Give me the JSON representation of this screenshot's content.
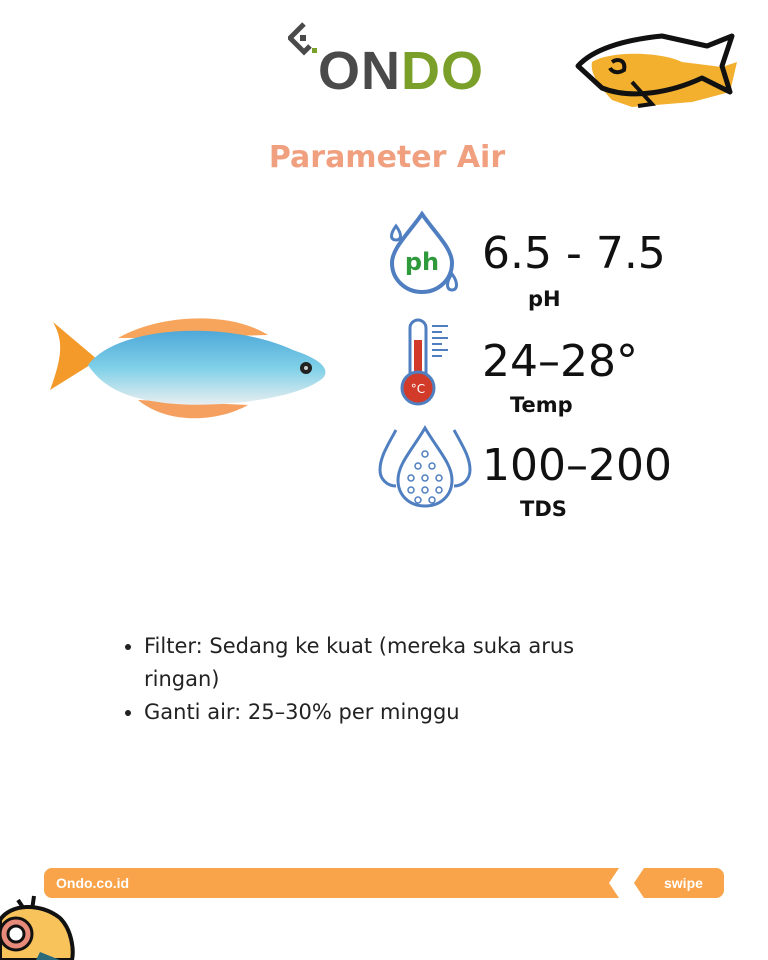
{
  "brand": {
    "logo_text_dark": "ON",
    "logo_text_green": "DO",
    "colors": {
      "dark": "#4a4a4a",
      "green": "#7aa02a",
      "orange": "#f9a34a",
      "title": "#f0a07f"
    }
  },
  "title": "Parameter Air",
  "params": [
    {
      "icon": "ph-drop-icon",
      "value": "6.5 - 7.5",
      "label": "pH",
      "icon_text": "ph"
    },
    {
      "icon": "thermometer-icon",
      "value": "24–28°",
      "label": "Temp",
      "icon_text": "°C"
    },
    {
      "icon": "water-drops-icon",
      "value": "100–200",
      "label": "TDS"
    }
  ],
  "bullets": [
    "Filter: Sedang ke kuat (mereka suka arus ringan)",
    "Ganti air: 25–30% per minggu"
  ],
  "footer": {
    "site": "Ondo.co.id",
    "swipe": "swipe"
  }
}
